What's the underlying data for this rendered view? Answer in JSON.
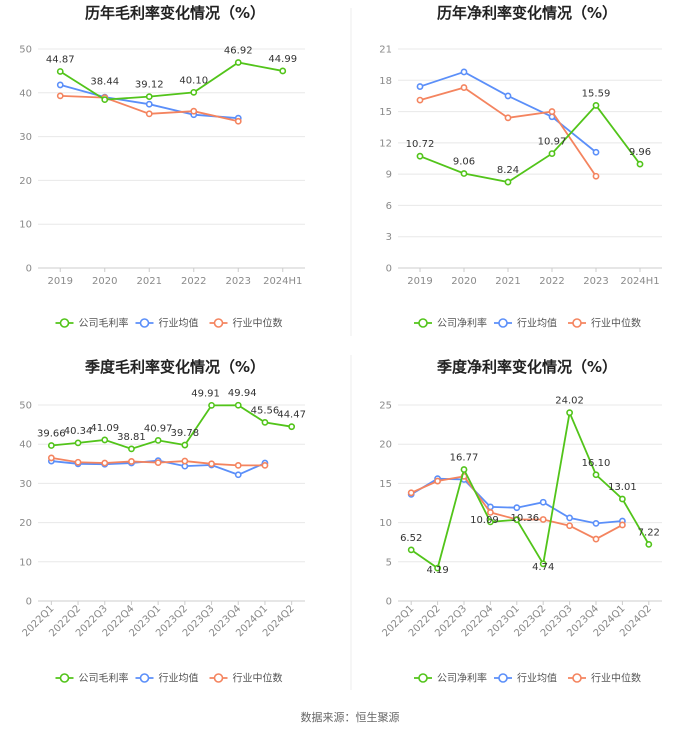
{
  "colors": {
    "company": "#52c41a",
    "industry_avg": "#5b8ff9",
    "industry_median": "#f4845f"
  },
  "source": "数据来源：恒生聚源",
  "chart_data": [
    {
      "type": "line",
      "title": "历年毛利率变化情况（%）",
      "categories": [
        "2019",
        "2020",
        "2021",
        "2022",
        "2023",
        "2024H1"
      ],
      "ylim": [
        0,
        50
      ],
      "yticks": [
        0,
        10,
        20,
        30,
        40,
        50
      ],
      "grid": true,
      "legend_position": "bottom",
      "series": [
        {
          "name": "公司毛利率",
          "key": "company",
          "values": [
            44.87,
            38.44,
            39.12,
            40.1,
            46.92,
            44.99
          ],
          "labels": [
            "44.87",
            "38.44",
            "39.12",
            "40.10",
            "46.92",
            "44.99"
          ]
        },
        {
          "name": "行业均值",
          "key": "industry_avg",
          "values": [
            41.8,
            39.0,
            37.4,
            35.0,
            34.2,
            null
          ]
        },
        {
          "name": "行业中位数",
          "key": "industry_median",
          "values": [
            39.3,
            38.9,
            35.2,
            35.8,
            33.5,
            null
          ]
        }
      ]
    },
    {
      "type": "line",
      "title": "历年净利率变化情况（%）",
      "categories": [
        "2019",
        "2020",
        "2021",
        "2022",
        "2023",
        "2024H1"
      ],
      "ylim": [
        0,
        21
      ],
      "yticks": [
        0,
        3,
        6,
        9,
        12,
        15,
        18,
        21
      ],
      "grid": true,
      "legend_position": "bottom",
      "series": [
        {
          "name": "公司净利率",
          "key": "company",
          "values": [
            10.72,
            9.06,
            8.24,
            10.97,
            15.59,
            9.96
          ],
          "labels": [
            "10.72",
            "9.06",
            "8.24",
            "10.97",
            "15.59",
            "9.96"
          ]
        },
        {
          "name": "行业均值",
          "key": "industry_avg",
          "values": [
            17.4,
            18.8,
            16.5,
            14.5,
            11.1,
            null
          ]
        },
        {
          "name": "行业中位数",
          "key": "industry_median",
          "values": [
            16.1,
            17.3,
            14.4,
            15.0,
            8.8,
            null
          ]
        }
      ]
    },
    {
      "type": "line",
      "title": "季度毛利率变化情况（%）",
      "categories": [
        "2022Q1",
        "2022Q2",
        "2022Q3",
        "2022Q4",
        "2023Q1",
        "2023Q2",
        "2023Q3",
        "2023Q4",
        "2024Q1",
        "2024Q2"
      ],
      "ylim": [
        0,
        50
      ],
      "yticks": [
        0,
        10,
        20,
        30,
        40,
        50
      ],
      "grid": true,
      "legend_position": "bottom",
      "series": [
        {
          "name": "公司毛利率",
          "key": "company",
          "values": [
            39.66,
            40.34,
            41.09,
            38.81,
            40.97,
            39.78,
            49.91,
            49.94,
            45.56,
            44.47
          ],
          "labels": [
            "39.66",
            "40.34",
            "41.09",
            "38.81",
            "40.97",
            "39.78",
            "49.91",
            "49.94",
            "45.56",
            "44.47"
          ]
        },
        {
          "name": "行业均值",
          "key": "industry_avg",
          "values": [
            35.7,
            35.0,
            34.9,
            35.2,
            35.8,
            34.4,
            34.7,
            32.2,
            35.2,
            null
          ]
        },
        {
          "name": "行业中位数",
          "key": "industry_median",
          "values": [
            36.5,
            35.4,
            35.2,
            35.6,
            35.3,
            35.7,
            35.0,
            34.6,
            34.6,
            null
          ]
        }
      ]
    },
    {
      "type": "line",
      "title": "季度净利率变化情况（%）",
      "categories": [
        "2022Q1",
        "2022Q2",
        "2022Q3",
        "2022Q4",
        "2023Q1",
        "2023Q2",
        "2023Q3",
        "2023Q4",
        "2024Q1",
        "2024Q2"
      ],
      "ylim": [
        0,
        25
      ],
      "yticks": [
        0,
        5,
        10,
        15,
        20,
        25
      ],
      "grid": true,
      "legend_position": "bottom",
      "series": [
        {
          "name": "公司净利率",
          "key": "company",
          "values": [
            6.52,
            4.19,
            16.77,
            10.09,
            10.36,
            4.74,
            24.02,
            16.1,
            13.01,
            7.22
          ],
          "labels": [
            "6.52",
            "4.19",
            "16.77",
            "10.09",
            "10.36",
            "4.74",
            "24.02",
            "16.10",
            "13.01",
            "7.22"
          ]
        },
        {
          "name": "行业均值",
          "key": "industry_avg",
          "values": [
            13.6,
            15.6,
            15.5,
            12.0,
            11.9,
            12.6,
            10.6,
            9.9,
            10.2,
            null
          ]
        },
        {
          "name": "行业中位数",
          "key": "industry_median",
          "values": [
            13.8,
            15.3,
            15.9,
            11.3,
            10.4,
            10.4,
            9.6,
            7.9,
            9.7,
            null
          ]
        }
      ]
    }
  ]
}
